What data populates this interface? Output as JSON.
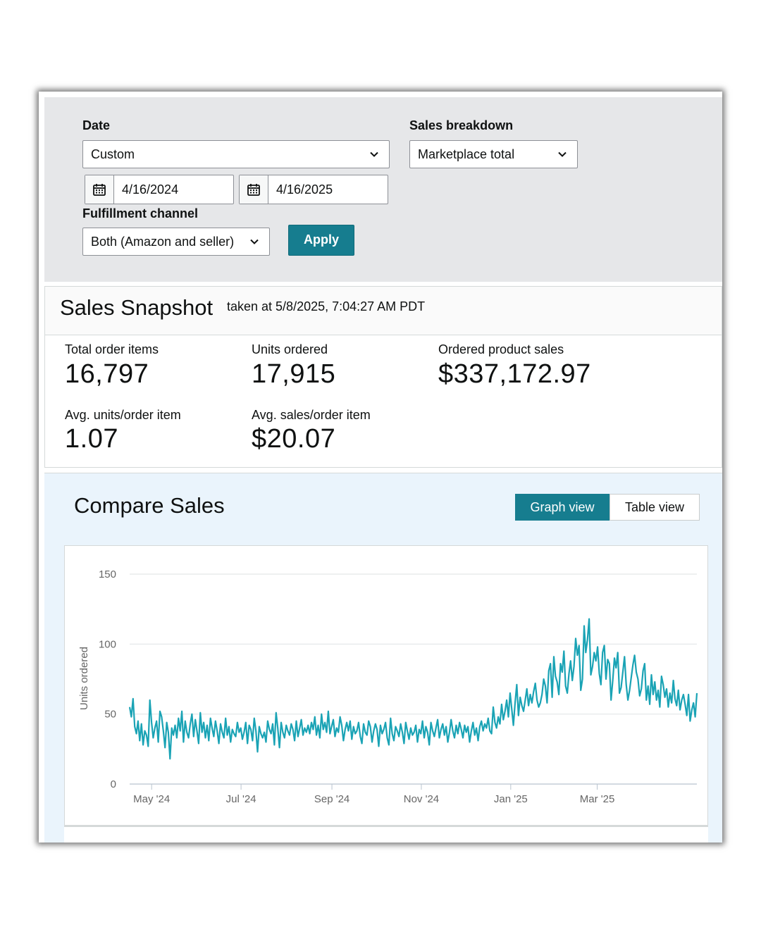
{
  "filters": {
    "date_label": "Date",
    "date_value": "Custom",
    "start_date": "4/16/2024",
    "end_date": "4/16/2025",
    "breakdown_label": "Sales breakdown",
    "breakdown_value": "Marketplace total",
    "fulfillment_label": "Fulfillment channel",
    "fulfillment_value": "Both (Amazon and seller)",
    "apply_label": "Apply"
  },
  "snapshot": {
    "title": "Sales Snapshot",
    "taken_at": "taken at 5/8/2025, 7:04:27 AM PDT",
    "metrics": [
      {
        "label": "Total order items",
        "value": "16,797"
      },
      {
        "label": "Units ordered",
        "value": "17,915"
      },
      {
        "label": "Ordered product sales",
        "value": "$337,172.97"
      },
      {
        "label": "Avg. units/order item",
        "value": "1.07"
      },
      {
        "label": "Avg. sales/order item",
        "value": "$20.07"
      }
    ]
  },
  "compare": {
    "title": "Compare Sales",
    "graph_view_label": "Graph view",
    "table_view_label": "Table view"
  },
  "colors": {
    "accent": "#167d8f",
    "line": "#1aa3b5",
    "filter_bg": "#e6e7e9",
    "compare_bg": "#eaf4fc"
  },
  "chart_data": {
    "type": "line",
    "ylabel": "Units ordered",
    "ylim": [
      0,
      150
    ],
    "yticks": [
      "0",
      "50",
      "100",
      "150"
    ],
    "xtick_labels": [
      "May '24",
      "Jul '24",
      "Sep '24",
      "Nov '24",
      "Jan '25",
      "Mar '25"
    ],
    "grid": true,
    "x_start": "4/16/2024",
    "x_end": "5/8/2025",
    "series": [
      {
        "values": [
          55,
          48,
          61,
          41,
          36,
          45,
          31,
          43,
          28,
          38,
          35,
          27,
          60,
          44,
          33,
          40,
          45,
          30,
          52,
          48,
          38,
          26,
          44,
          37,
          18,
          40,
          35,
          42,
          33,
          47,
          38,
          52,
          30,
          45,
          37,
          33,
          43,
          50,
          34,
          46,
          38,
          29,
          51,
          37,
          44,
          33,
          42,
          31,
          47,
          40,
          34,
          45,
          38,
          29,
          43,
          37,
          33,
          47,
          35,
          41,
          30,
          39,
          36,
          34,
          44,
          37,
          40,
          32,
          37,
          44,
          29,
          42,
          39,
          31,
          47,
          38,
          23,
          41,
          36,
          33,
          37,
          30,
          45,
          39,
          36,
          43,
          28,
          51,
          40,
          26,
          44,
          37,
          33,
          42,
          38,
          35,
          43,
          39,
          31,
          45,
          34,
          40,
          46,
          35,
          40,
          37,
          42,
          36,
          44,
          39,
          48,
          35,
          42,
          33,
          50,
          39,
          44,
          37,
          52,
          36,
          41,
          46,
          34,
          40,
          37,
          48,
          42,
          31,
          39,
          44,
          38,
          45,
          32,
          41,
          36,
          38,
          44,
          34,
          29,
          43,
          37,
          35,
          45,
          41,
          30,
          38,
          43,
          39,
          27,
          42,
          36,
          39,
          44,
          33,
          28,
          47,
          36,
          31,
          41,
          38,
          34,
          43,
          37,
          29,
          44,
          38,
          32,
          40,
          35,
          37,
          42,
          30,
          39,
          36,
          45,
          33,
          41,
          37,
          28,
          44,
          38,
          34,
          40,
          46,
          33,
          39,
          43,
          35,
          41,
          30,
          37,
          46,
          38,
          33,
          42,
          36,
          44,
          39,
          33,
          42,
          37,
          41,
          30,
          38,
          44,
          35,
          40,
          31,
          41,
          45,
          38,
          43,
          40,
          47,
          38,
          36,
          55,
          44,
          40,
          48,
          43,
          57,
          46,
          52,
          60,
          48,
          65,
          54,
          42,
          58,
          71,
          49,
          62,
          56,
          52,
          60,
          68,
          56,
          64,
          58,
          66,
          72,
          60,
          55,
          58,
          64,
          75,
          70,
          58,
          81,
          86,
          62,
          91,
          77,
          73,
          64,
          86,
          80,
          95,
          70,
          65,
          79,
          88,
          74,
          84,
          104,
          92,
          99,
          67,
          75,
          113,
          94,
          103,
          118,
          78,
          84,
          94,
          88,
          98,
          79,
          71,
          94,
          99,
          75,
          89,
          86,
          60,
          74,
          90,
          83,
          94,
          65,
          69,
          80,
          91,
          71,
          60,
          67,
          76,
          85,
          92,
          80,
          75,
          63,
          68,
          81,
          86,
          60,
          70,
          57,
          78,
          64,
          73,
          60,
          67,
          55,
          77,
          71,
          62,
          68,
          55,
          65,
          58,
          74,
          61,
          56,
          67,
          53,
          60,
          64,
          57,
          49,
          64,
          45,
          53,
          58,
          48,
          65
        ]
      }
    ]
  }
}
